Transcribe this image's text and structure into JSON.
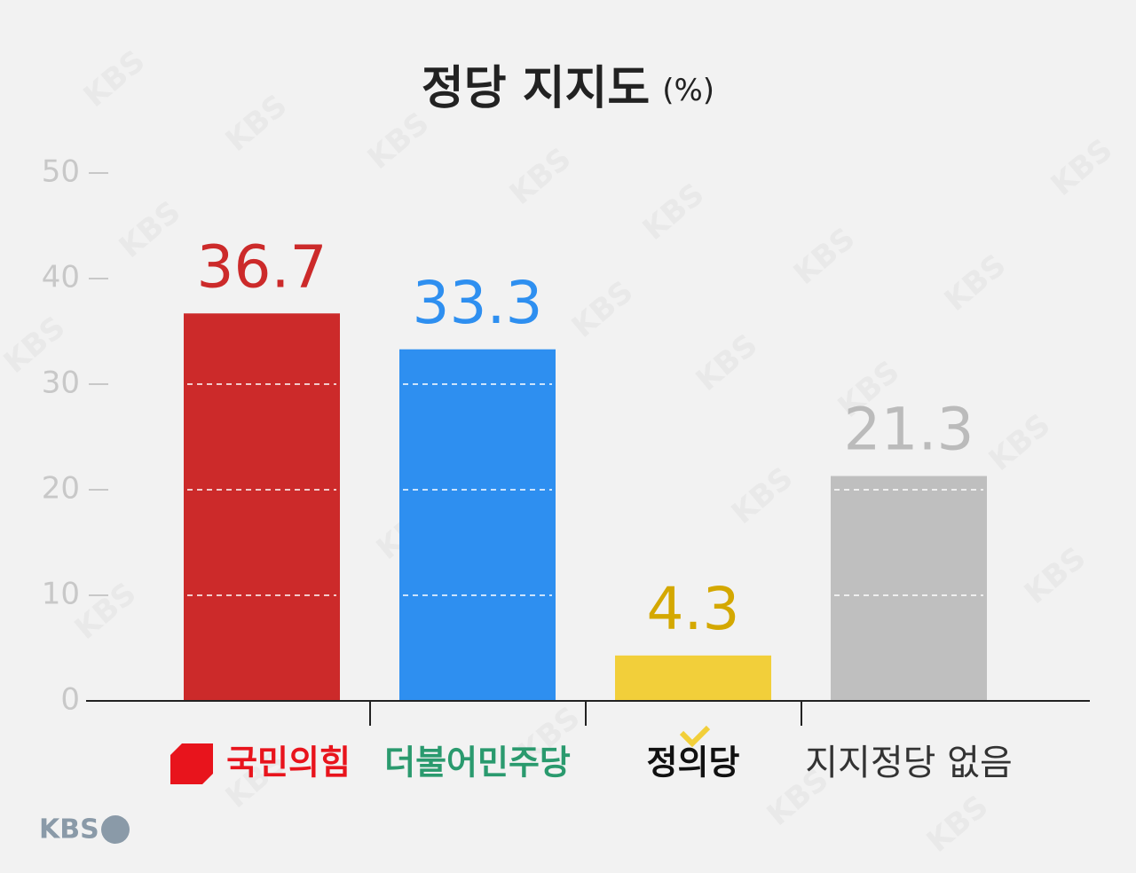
{
  "chart_data": {
    "type": "bar",
    "title": "정당 지지도",
    "unit_label": "(%)",
    "categories": [
      "국민의힘",
      "더불어민주당",
      "정의당",
      "지지정당 없음"
    ],
    "values": [
      36.7,
      33.3,
      4.3,
      21.3
    ],
    "colors": [
      "#cc2a2a",
      "#2e8ff0",
      "#f2cf3a",
      "#bfbfbf"
    ],
    "label_colors": [
      "#cc2a2a",
      "#2e8ff0",
      "#d4a800",
      "#bbbbbb"
    ],
    "category_colors": [
      "#e8141c",
      "#2a9a6e",
      "#111111",
      "#333333"
    ],
    "ylim": [
      0,
      50
    ],
    "yticks": [
      0,
      10,
      20,
      30,
      40,
      50
    ],
    "grid": true,
    "watermark": "KBS",
    "logo": "KBS"
  }
}
